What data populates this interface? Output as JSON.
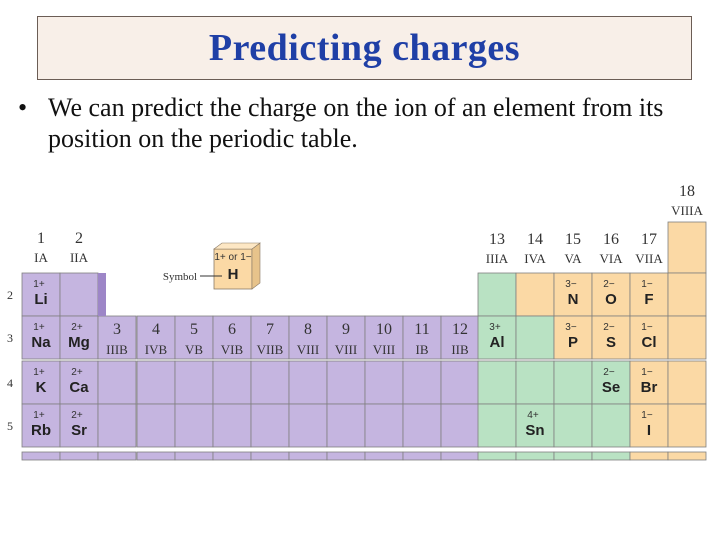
{
  "slide": {
    "title": "Predicting charges",
    "bullet_char": "•",
    "bullet_text": "We can predict the charge on the ion of an element from its position on the periodic table."
  },
  "table": {
    "group_numbers": [
      {
        "num": "1",
        "roman": "IA"
      },
      {
        "num": "2",
        "roman": "IIA"
      },
      {
        "num": "3",
        "roman": "IIIB"
      },
      {
        "num": "4",
        "roman": "IVB"
      },
      {
        "num": "5",
        "roman": "VB"
      },
      {
        "num": "6",
        "roman": "VIB"
      },
      {
        "num": "7",
        "roman": "VIIB"
      },
      {
        "num": "8",
        "roman": "VIII"
      },
      {
        "num": "9",
        "roman": "VIII"
      },
      {
        "num": "10",
        "roman": "VIII"
      },
      {
        "num": "11",
        "roman": "IB"
      },
      {
        "num": "12",
        "roman": "IIB"
      },
      {
        "num": "13",
        "roman": "IIIA"
      },
      {
        "num": "14",
        "roman": "IVA"
      },
      {
        "num": "15",
        "roman": "VA"
      },
      {
        "num": "16",
        "roman": "VIA"
      },
      {
        "num": "17",
        "roman": "VIIA"
      },
      {
        "num": "18",
        "roman": "VIIIA"
      }
    ],
    "period_numbers": [
      "2",
      "3",
      "4",
      "5"
    ],
    "legend": {
      "label": "Symbol",
      "charge": "1+ or 1−",
      "symbol": "H"
    },
    "elements": [
      {
        "symbol": "Li",
        "charge": "1+",
        "group": 1,
        "period": 2
      },
      {
        "symbol": "Na",
        "charge": "1+",
        "group": 1,
        "period": 3
      },
      {
        "symbol": "K",
        "charge": "1+",
        "group": 1,
        "period": 4
      },
      {
        "symbol": "Rb",
        "charge": "1+",
        "group": 1,
        "period": 5
      },
      {
        "symbol": "Mg",
        "charge": "2+",
        "group": 2,
        "period": 3
      },
      {
        "symbol": "Ca",
        "charge": "2+",
        "group": 2,
        "period": 4
      },
      {
        "symbol": "Sr",
        "charge": "2+",
        "group": 2,
        "period": 5
      },
      {
        "symbol": "Al",
        "charge": "3+",
        "group": 13,
        "period": 3
      },
      {
        "symbol": "Sn",
        "charge": "4+",
        "group": 14,
        "period": 5
      },
      {
        "symbol": "N",
        "charge": "3−",
        "group": 15,
        "period": 2
      },
      {
        "symbol": "P",
        "charge": "3−",
        "group": 15,
        "period": 3
      },
      {
        "symbol": "O",
        "charge": "2−",
        "group": 16,
        "period": 2
      },
      {
        "symbol": "S",
        "charge": "2−",
        "group": 16,
        "period": 3
      },
      {
        "symbol": "Se",
        "charge": "2−",
        "group": 16,
        "period": 4
      },
      {
        "symbol": "F",
        "charge": "1−",
        "group": 17,
        "period": 2
      },
      {
        "symbol": "Cl",
        "charge": "1−",
        "group": 17,
        "period": 3
      },
      {
        "symbol": "Br",
        "charge": "1−",
        "group": 17,
        "period": 4
      },
      {
        "symbol": "I",
        "charge": "1−",
        "group": 17,
        "period": 5
      }
    ],
    "colors": {
      "purple": "#c5b5e0",
      "green": "#b9e2c3",
      "orange": "#fbd9a5",
      "purple_dark": "#9d86c7"
    }
  }
}
